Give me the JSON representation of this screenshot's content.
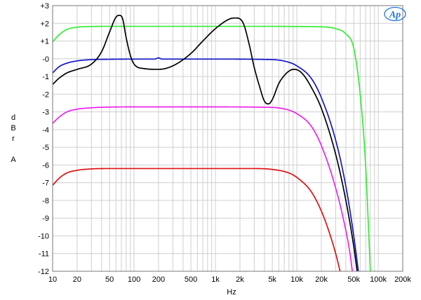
{
  "chart_data": {
    "type": "line",
    "xlabel": "Hz",
    "ylabel_lines": [
      "d",
      "B",
      "r",
      "",
      "A"
    ],
    "xscale": "log",
    "xlim": [
      10,
      200000
    ],
    "ylim": [
      -12,
      3
    ],
    "grid": true,
    "x_tick_labels": [
      {
        "value": 10,
        "label": "10"
      },
      {
        "value": 20,
        "label": "20"
      },
      {
        "value": 50,
        "label": "50"
      },
      {
        "value": 100,
        "label": "100"
      },
      {
        "value": 200,
        "label": "200"
      },
      {
        "value": 500,
        "label": "500"
      },
      {
        "value": 1000,
        "label": "1k"
      },
      {
        "value": 2000,
        "label": "2k"
      },
      {
        "value": 5000,
        "label": "5k"
      },
      {
        "value": 10000,
        "label": "10k"
      },
      {
        "value": 20000,
        "label": "20k"
      },
      {
        "value": 50000,
        "label": "50k"
      },
      {
        "value": 100000,
        "label": "100k"
      },
      {
        "value": 200000,
        "label": "200k"
      }
    ],
    "y_tick_labels": [
      {
        "value": 3,
        "label": "+3"
      },
      {
        "value": 2,
        "label": "+2"
      },
      {
        "value": 1,
        "label": "+1"
      },
      {
        "value": 0,
        "label": "-0"
      },
      {
        "value": -1,
        "label": "-1"
      },
      {
        "value": -2,
        "label": "-2"
      },
      {
        "value": -3,
        "label": "-3"
      },
      {
        "value": -4,
        "label": "-4"
      },
      {
        "value": -5,
        "label": "-5"
      },
      {
        "value": -6,
        "label": "-6"
      },
      {
        "value": -7,
        "label": "-7"
      },
      {
        "value": -8,
        "label": "-8"
      },
      {
        "value": -9,
        "label": "-9"
      },
      {
        "value": -10,
        "label": "-10"
      },
      {
        "value": -11,
        "label": "-11"
      },
      {
        "value": -12,
        "label": "-12"
      }
    ],
    "logo_text": "Ap",
    "series": [
      {
        "color": "#33ee33",
        "points": [
          [
            10,
            0.95
          ],
          [
            12,
            1.35
          ],
          [
            15,
            1.65
          ],
          [
            20,
            1.78
          ],
          [
            30,
            1.82
          ],
          [
            50,
            1.83
          ],
          [
            100,
            1.83
          ],
          [
            1000,
            1.83
          ],
          [
            5000,
            1.83
          ],
          [
            10000,
            1.82
          ],
          [
            20000,
            1.8
          ],
          [
            30000,
            1.7
          ],
          [
            40000,
            1.4
          ],
          [
            50000,
            0.6
          ],
          [
            60000,
            -2.0
          ],
          [
            70000,
            -6.0
          ],
          [
            75000,
            -9.0
          ],
          [
            80000,
            -12.0
          ]
        ]
      },
      {
        "color": "#1515cc",
        "points": [
          [
            10,
            -0.8
          ],
          [
            12,
            -0.45
          ],
          [
            15,
            -0.25
          ],
          [
            20,
            -0.12
          ],
          [
            30,
            -0.05
          ],
          [
            50,
            -0.03
          ],
          [
            100,
            -0.02
          ],
          [
            180,
            -0.02
          ],
          [
            200,
            0.05
          ],
          [
            220,
            -0.02
          ],
          [
            500,
            -0.02
          ],
          [
            1000,
            -0.02
          ],
          [
            5000,
            -0.05
          ],
          [
            8000,
            -0.2
          ],
          [
            10000,
            -0.4
          ],
          [
            15000,
            -1.1
          ],
          [
            20000,
            -2.2
          ],
          [
            30000,
            -4.6
          ],
          [
            40000,
            -7.2
          ],
          [
            50000,
            -10.0
          ],
          [
            57000,
            -12.0
          ]
        ]
      },
      {
        "color": "#000000",
        "points": [
          [
            10,
            -1.45
          ],
          [
            12,
            -1.1
          ],
          [
            15,
            -0.8
          ],
          [
            20,
            -0.6
          ],
          [
            30,
            -0.3
          ],
          [
            40,
            0.4
          ],
          [
            50,
            1.5
          ],
          [
            60,
            2.35
          ],
          [
            66,
            2.45
          ],
          [
            72,
            2.3
          ],
          [
            80,
            1.2
          ],
          [
            90,
            0.2
          ],
          [
            100,
            -0.3
          ],
          [
            130,
            -0.55
          ],
          [
            200,
            -0.6
          ],
          [
            300,
            -0.4
          ],
          [
            500,
            0.3
          ],
          [
            700,
            1.0
          ],
          [
            1000,
            1.7
          ],
          [
            1500,
            2.25
          ],
          [
            1800,
            2.3
          ],
          [
            2200,
            2.0
          ],
          [
            2600,
            0.8
          ],
          [
            3000,
            -0.5
          ],
          [
            3500,
            -1.6
          ],
          [
            4000,
            -2.4
          ],
          [
            4500,
            -2.55
          ],
          [
            5000,
            -2.3
          ],
          [
            6000,
            -1.4
          ],
          [
            7000,
            -0.95
          ],
          [
            8000,
            -0.7
          ],
          [
            9000,
            -0.6
          ],
          [
            10000,
            -0.62
          ],
          [
            12000,
            -0.9
          ],
          [
            15000,
            -1.6
          ],
          [
            20000,
            -2.8
          ],
          [
            30000,
            -5.4
          ],
          [
            40000,
            -8.0
          ],
          [
            50000,
            -10.6
          ],
          [
            55000,
            -12.0
          ]
        ]
      },
      {
        "color": "#ee22ee",
        "points": [
          [
            10,
            -3.65
          ],
          [
            12,
            -3.3
          ],
          [
            15,
            -3.0
          ],
          [
            20,
            -2.85
          ],
          [
            30,
            -2.77
          ],
          [
            50,
            -2.73
          ],
          [
            100,
            -2.72
          ],
          [
            1000,
            -2.72
          ],
          [
            5000,
            -2.75
          ],
          [
            8000,
            -2.9
          ],
          [
            10000,
            -3.1
          ],
          [
            15000,
            -3.8
          ],
          [
            20000,
            -4.9
          ],
          [
            30000,
            -7.3
          ],
          [
            40000,
            -9.7
          ],
          [
            45000,
            -11.0
          ],
          [
            48000,
            -12.0
          ]
        ]
      },
      {
        "color": "#dd1111",
        "points": [
          [
            10,
            -7.15
          ],
          [
            12,
            -6.75
          ],
          [
            15,
            -6.45
          ],
          [
            20,
            -6.3
          ],
          [
            30,
            -6.22
          ],
          [
            50,
            -6.2
          ],
          [
            100,
            -6.2
          ],
          [
            1000,
            -6.2
          ],
          [
            3000,
            -6.2
          ],
          [
            5000,
            -6.25
          ],
          [
            8000,
            -6.45
          ],
          [
            10000,
            -6.7
          ],
          [
            15000,
            -7.5
          ],
          [
            20000,
            -8.6
          ],
          [
            25000,
            -9.8
          ],
          [
            30000,
            -11.0
          ],
          [
            34000,
            -12.0
          ]
        ]
      }
    ]
  }
}
